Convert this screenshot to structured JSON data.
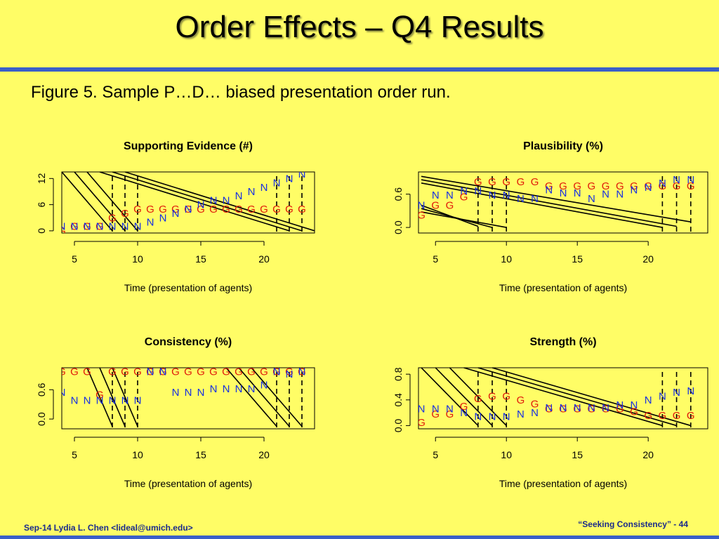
{
  "slide": {
    "title": "Order Effects – Q4 Results",
    "caption": "Figure 5.  Sample P…D… biased presentation order run."
  },
  "footer": {
    "left": "Sep-14 Lydia L. Chen <lideal@umich.edu>",
    "right": "“Seeking Consistency” - 44"
  },
  "colors": {
    "background": "#fffd66",
    "accent_bar": "#3a5fc8",
    "G": "#e01a0a",
    "N": "#1830e0",
    "footer_text": "#1a2a8c"
  },
  "chart_data": [
    {
      "type": "line",
      "title": "Supporting Evidence (#)",
      "xlabel": "Time (presentation of agents)",
      "ylabel": "",
      "xticks": [
        5,
        10,
        15,
        20
      ],
      "yticks": [
        0,
        6,
        12
      ],
      "xlim": [
        4,
        24
      ],
      "ylim": [
        -0.5,
        13.5
      ],
      "vlines": [
        8,
        9,
        10,
        21,
        22,
        23
      ],
      "series": [
        {
          "name": "G",
          "points": [
            [
              4,
              0
            ],
            [
              5,
              1
            ],
            [
              6,
              1
            ],
            [
              7,
              1
            ],
            [
              8,
              3
            ],
            [
              9,
              4
            ],
            [
              10,
              5
            ],
            [
              11,
              5
            ],
            [
              12,
              5
            ],
            [
              13,
              5
            ],
            [
              14,
              5
            ],
            [
              15,
              5
            ],
            [
              16,
              5
            ],
            [
              17,
              5
            ],
            [
              18,
              5
            ],
            [
              19,
              5
            ],
            [
              20,
              5
            ],
            [
              21,
              5
            ],
            [
              22,
              5
            ],
            [
              23,
              5
            ]
          ]
        },
        {
          "name": "N",
          "points": [
            [
              4,
              1
            ],
            [
              5,
              1
            ],
            [
              6,
              1
            ],
            [
              7,
              1
            ],
            [
              8,
              1
            ],
            [
              9,
              1
            ],
            [
              10,
              1
            ],
            [
              11,
              2
            ],
            [
              12,
              3
            ],
            [
              13,
              4
            ],
            [
              14,
              5
            ],
            [
              15,
              6
            ],
            [
              16,
              7
            ],
            [
              17,
              7
            ],
            [
              18,
              8
            ],
            [
              19,
              9
            ],
            [
              20,
              10
            ],
            [
              21,
              11
            ],
            [
              22,
              12
            ],
            [
              23,
              13
            ]
          ]
        }
      ]
    },
    {
      "type": "line",
      "title": "Plausibility (%)",
      "xlabel": "Time (presentation of agents)",
      "ylabel": "",
      "xticks": [
        5,
        10,
        15,
        20
      ],
      "yticks": [
        0.0,
        0.6
      ],
      "xlim": [
        3.8,
        24.2
      ],
      "ylim": [
        -0.1,
        1.0
      ],
      "vlines": [
        8,
        9,
        10,
        21,
        22,
        23
      ],
      "series": [
        {
          "name": "G",
          "points": [
            [
              4,
              0.22
            ],
            [
              5,
              0.4
            ],
            [
              6,
              0.4
            ],
            [
              7,
              0.55
            ],
            [
              8,
              0.82
            ],
            [
              9,
              0.82
            ],
            [
              10,
              0.82
            ],
            [
              11,
              0.82
            ],
            [
              12,
              0.82
            ],
            [
              13,
              0.75
            ],
            [
              14,
              0.75
            ],
            [
              15,
              0.75
            ],
            [
              16,
              0.75
            ],
            [
              17,
              0.75
            ],
            [
              18,
              0.75
            ],
            [
              19,
              0.75
            ],
            [
              20,
              0.75
            ],
            [
              21,
              0.75
            ],
            [
              22,
              0.75
            ],
            [
              23,
              0.75
            ]
          ]
        },
        {
          "name": "N",
          "points": [
            [
              4,
              0.4
            ],
            [
              5,
              0.58
            ],
            [
              6,
              0.58
            ],
            [
              7,
              0.66
            ],
            [
              8,
              0.66
            ],
            [
              9,
              0.58
            ],
            [
              10,
              0.58
            ],
            [
              11,
              0.52
            ],
            [
              12,
              0.52
            ],
            [
              13,
              0.68
            ],
            [
              14,
              0.62
            ],
            [
              15,
              0.62
            ],
            [
              16,
              0.52
            ],
            [
              17,
              0.6
            ],
            [
              18,
              0.6
            ],
            [
              19,
              0.68
            ],
            [
              20,
              0.72
            ],
            [
              21,
              0.8
            ],
            [
              22,
              0.86
            ],
            [
              23,
              0.86
            ]
          ]
        }
      ]
    },
    {
      "type": "line",
      "title": "Consistency (%)",
      "xlabel": "Time (presentation of agents)",
      "ylabel": "",
      "xticks": [
        5,
        10,
        15,
        20
      ],
      "yticks": [
        0.0,
        0.6
      ],
      "xlim": [
        4,
        24
      ],
      "ylim": [
        -0.2,
        1.05
      ],
      "vlines": [
        8,
        9,
        10,
        21,
        22,
        23
      ],
      "series": [
        {
          "name": "G",
          "points": [
            [
              4,
              0.97
            ],
            [
              5,
              0.97
            ],
            [
              6,
              0.97
            ],
            [
              7,
              0.5
            ],
            [
              8,
              0.97
            ],
            [
              9,
              0.97
            ],
            [
              10,
              0.97
            ],
            [
              11,
              0.97
            ],
            [
              12,
              0.97
            ],
            [
              13,
              0.97
            ],
            [
              14,
              0.97
            ],
            [
              15,
              0.97
            ],
            [
              16,
              0.97
            ],
            [
              17,
              0.97
            ],
            [
              18,
              0.97
            ],
            [
              19,
              0.97
            ],
            [
              20,
              0.97
            ],
            [
              21,
              0.97
            ],
            [
              22,
              0.97
            ],
            [
              23,
              0.97
            ]
          ]
        },
        {
          "name": "N",
          "points": [
            [
              4,
              0.55
            ],
            [
              5,
              0.38
            ],
            [
              6,
              0.38
            ],
            [
              7,
              0.38
            ],
            [
              8,
              0.38
            ],
            [
              9,
              0.38
            ],
            [
              10,
              0.38
            ],
            [
              11,
              0.97
            ],
            [
              12,
              0.97
            ],
            [
              13,
              0.55
            ],
            [
              14,
              0.55
            ],
            [
              15,
              0.55
            ],
            [
              16,
              0.62
            ],
            [
              17,
              0.62
            ],
            [
              18,
              0.62
            ],
            [
              19,
              0.62
            ],
            [
              20,
              0.7
            ],
            [
              21,
              0.97
            ],
            [
              22,
              0.92
            ],
            [
              23,
              0.97
            ]
          ]
        }
      ]
    },
    {
      "type": "line",
      "title": "Strength (%)",
      "xlabel": "Time (presentation of agents)",
      "ylabel": "",
      "xticks": [
        5,
        10,
        15,
        20
      ],
      "yticks": [
        0.0,
        0.4,
        0.8
      ],
      "xlim": [
        3.8,
        24.2
      ],
      "ylim": [
        -0.05,
        0.9
      ],
      "vlines": [
        8,
        9,
        10,
        21,
        22,
        23
      ],
      "series": [
        {
          "name": "G",
          "points": [
            [
              4,
              0.05
            ],
            [
              5,
              0.18
            ],
            [
              6,
              0.18
            ],
            [
              7,
              0.3
            ],
            [
              8,
              0.42
            ],
            [
              9,
              0.46
            ],
            [
              10,
              0.46
            ],
            [
              11,
              0.4
            ],
            [
              12,
              0.34
            ],
            [
              13,
              0.26
            ],
            [
              14,
              0.26
            ],
            [
              15,
              0.26
            ],
            [
              16,
              0.26
            ],
            [
              17,
              0.26
            ],
            [
              18,
              0.26
            ],
            [
              19,
              0.22
            ],
            [
              20,
              0.16
            ],
            [
              21,
              0.16
            ],
            [
              22,
              0.16
            ],
            [
              23,
              0.16
            ]
          ]
        },
        {
          "name": "N",
          "points": [
            [
              4,
              0.26
            ],
            [
              5,
              0.26
            ],
            [
              6,
              0.26
            ],
            [
              7,
              0.2
            ],
            [
              8,
              0.14
            ],
            [
              9,
              0.14
            ],
            [
              10,
              0.14
            ],
            [
              11,
              0.18
            ],
            [
              12,
              0.2
            ],
            [
              13,
              0.28
            ],
            [
              14,
              0.28
            ],
            [
              15,
              0.28
            ],
            [
              16,
              0.28
            ],
            [
              17,
              0.28
            ],
            [
              18,
              0.32
            ],
            [
              19,
              0.32
            ],
            [
              20,
              0.4
            ],
            [
              21,
              0.46
            ],
            [
              22,
              0.52
            ],
            [
              23,
              0.54
            ]
          ]
        }
      ]
    }
  ]
}
